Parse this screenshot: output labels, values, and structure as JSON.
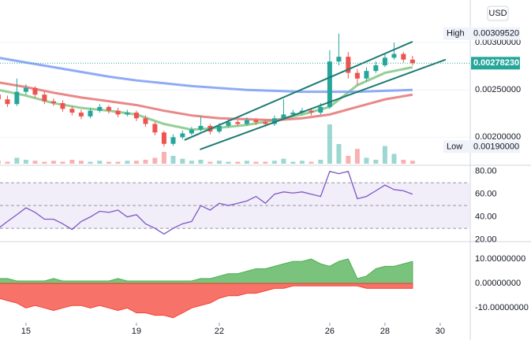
{
  "chart_data": [
    {
      "type": "candlestick",
      "currency": "USD",
      "x": [
        14,
        14.33,
        14.67,
        15,
        15.33,
        15.67,
        16,
        16.33,
        16.67,
        17,
        17.33,
        17.67,
        18,
        18.33,
        18.67,
        19,
        19.33,
        19.67,
        20,
        20.33,
        20.67,
        21,
        21.33,
        21.67,
        22,
        22.33,
        22.67,
        23,
        23.33,
        23.67,
        24,
        24.33,
        24.67,
        25,
        25.33,
        25.67,
        26,
        26.33,
        26.67,
        27,
        27.33,
        27.67,
        28,
        28.33,
        28.67,
        29
      ],
      "open": [
        0.00245,
        0.0024,
        0.00235,
        0.00248,
        0.00252,
        0.00245,
        0.00238,
        0.00236,
        0.0023,
        0.00226,
        0.00222,
        0.00228,
        0.00232,
        0.00228,
        0.00224,
        0.00226,
        0.0022,
        0.00214,
        0.00205,
        0.00193,
        0.002,
        0.00204,
        0.00208,
        0.00212,
        0.00206,
        0.00212,
        0.00216,
        0.00214,
        0.00218,
        0.00216,
        0.00214,
        0.0022,
        0.00224,
        0.00226,
        0.00228,
        0.00226,
        0.00232,
        0.0028,
        0.00285,
        0.00268,
        0.00262,
        0.0027,
        0.00276,
        0.00284,
        0.00288,
        0.00282
      ],
      "high": [
        0.0025,
        0.00244,
        0.00262,
        0.00256,
        0.00254,
        0.00248,
        0.00241,
        0.00239,
        0.00233,
        0.00229,
        0.00231,
        0.00235,
        0.00234,
        0.00231,
        0.00229,
        0.00228,
        0.00223,
        0.00216,
        0.00207,
        0.00203,
        0.00207,
        0.00211,
        0.00222,
        0.00214,
        0.00215,
        0.00219,
        0.00218,
        0.00221,
        0.0022,
        0.00218,
        0.00223,
        0.0024,
        0.00229,
        0.00231,
        0.0023,
        0.00236,
        0.00292,
        0.0030952,
        0.0029,
        0.00272,
        0.00274,
        0.0028,
        0.00288,
        0.003,
        0.0029,
        0.00286
      ],
      "low": [
        0.00236,
        0.00232,
        0.00233,
        0.00245,
        0.00242,
        0.00235,
        0.00233,
        0.00227,
        0.00223,
        0.00219,
        0.0022,
        0.00226,
        0.00225,
        0.00221,
        0.00222,
        0.00217,
        0.00211,
        0.00202,
        0.0019,
        0.00191,
        0.00198,
        0.00202,
        0.00206,
        0.00203,
        0.00204,
        0.0021,
        0.00212,
        0.00212,
        0.00213,
        0.00211,
        0.00212,
        0.00218,
        0.00222,
        0.00224,
        0.00223,
        0.00224,
        0.0023,
        0.00276,
        0.00262,
        0.00255,
        0.00259,
        0.00268,
        0.00274,
        0.00282,
        0.00279,
        0.00276
      ],
      "close": [
        0.0024,
        0.00235,
        0.00248,
        0.00252,
        0.00245,
        0.00238,
        0.00236,
        0.0023,
        0.00226,
        0.00222,
        0.00228,
        0.00232,
        0.00228,
        0.00224,
        0.00226,
        0.0022,
        0.00214,
        0.00205,
        0.00193,
        0.002,
        0.00204,
        0.00208,
        0.00212,
        0.00206,
        0.00212,
        0.00216,
        0.00214,
        0.00218,
        0.00216,
        0.00214,
        0.0022,
        0.00224,
        0.00226,
        0.00228,
        0.00226,
        0.00232,
        0.0028,
        0.00285,
        0.00268,
        0.00262,
        0.0027,
        0.00276,
        0.00284,
        0.00288,
        0.00282,
        0.0027823
      ],
      "volume": [
        3,
        2,
        6,
        4,
        3,
        2,
        3,
        2,
        4,
        3,
        2,
        3,
        2,
        2,
        3,
        3,
        4,
        6,
        12,
        8,
        5,
        3,
        4,
        2,
        3,
        2,
        2,
        3,
        2,
        2,
        3,
        5,
        2,
        3,
        2,
        4,
        40,
        20,
        8,
        15,
        6,
        4,
        18,
        10,
        4,
        3
      ],
      "up_color": "#26a69a",
      "down_color": "#ef5350",
      "ma": [
        {
          "color": "#81c784",
          "x": [
            14,
            15,
            16,
            17,
            18,
            19,
            20,
            21,
            22,
            23,
            24,
            25,
            26,
            27,
            28,
            29
          ],
          "values": [
            0.0025,
            0.00244,
            0.00236,
            0.00231,
            0.00228,
            0.00224,
            0.00214,
            0.00208,
            0.0021,
            0.00213,
            0.00218,
            0.00224,
            0.00232,
            0.00255,
            0.00268,
            0.00274
          ]
        },
        {
          "color": "#e57373",
          "x": [
            14,
            15,
            16,
            17,
            18,
            19,
            20,
            21,
            22,
            23,
            24,
            25,
            26,
            27,
            28,
            29
          ],
          "values": [
            0.00258,
            0.00253,
            0.00247,
            0.00242,
            0.00238,
            0.00234,
            0.00228,
            0.00223,
            0.0022,
            0.00219,
            0.00218,
            0.0022,
            0.00224,
            0.00232,
            0.0024,
            0.00245
          ]
        },
        {
          "color": "#7b9cf5",
          "x": [
            14,
            15,
            16,
            17,
            18,
            19,
            20,
            21,
            22,
            23,
            24,
            25,
            26,
            27,
            28,
            29
          ],
          "values": [
            0.00284,
            0.00279,
            0.00274,
            0.00269,
            0.00264,
            0.0026,
            0.00257,
            0.00254,
            0.00252,
            0.0025,
            0.00249,
            0.00248,
            0.00248,
            0.00248,
            0.00249,
            0.0025
          ]
        }
      ],
      "trendlines": [
        {
          "color": "#1e7a72",
          "x": [
            20.74,
            29.0
          ],
          "values": [
            0.00197,
            0.00301
          ]
        },
        {
          "color": "#1e7a72",
          "x": [
            21.3,
            30.2
          ],
          "values": [
            0.00187,
            0.00282
          ]
        }
      ],
      "high_marker": {
        "name": "High",
        "value": 0.0030952,
        "value_label": "0.00309520"
      },
      "low_marker": {
        "name": "Low",
        "value": 0.0019,
        "value_label": "0.00190000"
      },
      "last_label": "0.00278230",
      "xlim": [
        14.06,
        31.06
      ],
      "ylim": [
        0.00172,
        0.00345
      ],
      "yticks": [
        {
          "value": 0.003,
          "label": "0.00300000"
        },
        {
          "value": 0.0025,
          "label": "0.00250000"
        },
        {
          "value": 0.002,
          "label": "0.00200000"
        }
      ]
    },
    {
      "type": "line",
      "color": "#7e57c2",
      "x": [
        14,
        14.33,
        14.67,
        15,
        15.33,
        15.67,
        16,
        16.33,
        16.67,
        17,
        17.33,
        17.67,
        18,
        18.33,
        18.67,
        19,
        19.33,
        19.67,
        20,
        20.33,
        20.67,
        21,
        21.33,
        21.67,
        22,
        22.33,
        22.67,
        23,
        23.33,
        23.67,
        24,
        24.33,
        24.67,
        25,
        25.33,
        25.67,
        26,
        26.33,
        26.67,
        27,
        27.33,
        27.67,
        28,
        28.33,
        28.67,
        29
      ],
      "values": [
        30,
        36,
        42,
        48,
        44,
        38,
        38,
        34,
        29,
        36,
        40,
        45,
        44,
        46,
        40,
        42,
        34,
        30,
        25,
        30,
        34,
        36,
        50,
        46,
        52,
        50,
        52,
        54,
        58,
        52,
        60,
        62,
        61,
        62,
        60,
        58,
        80,
        78,
        80,
        56,
        58,
        63,
        68,
        64,
        63,
        60
      ],
      "levels": [
        30,
        50,
        70
      ],
      "xlim": [
        14.06,
        31.06
      ],
      "ylim": [
        19,
        84
      ],
      "yticks": [
        {
          "value": 80,
          "label": "80.00"
        },
        {
          "value": 60,
          "label": "60.00"
        },
        {
          "value": 40,
          "label": "40.00"
        },
        {
          "value": 20,
          "label": "20.00"
        }
      ]
    },
    {
      "type": "area",
      "x": [
        14,
        14.33,
        14.67,
        15,
        15.33,
        15.67,
        16,
        16.33,
        16.67,
        17,
        17.33,
        17.67,
        18,
        18.33,
        18.67,
        19,
        19.33,
        19.67,
        20,
        20.33,
        20.67,
        21,
        21.33,
        21.67,
        22,
        22.33,
        22.67,
        23,
        23.33,
        23.67,
        24,
        24.33,
        24.67,
        25,
        25.33,
        25.67,
        26,
        26.33,
        26.67,
        27,
        27.33,
        27.67,
        28,
        28.33,
        28.67,
        29
      ],
      "series": [
        {
          "color": "#4caf50",
          "values": [
            2,
            2,
            1,
            1,
            1,
            1,
            2,
            1,
            1,
            1,
            1,
            1,
            1,
            2,
            1,
            1,
            1,
            1,
            1,
            1,
            1,
            1,
            2,
            2,
            3,
            4,
            4,
            5,
            6,
            6,
            7,
            8,
            9,
            9,
            10,
            8,
            7,
            9,
            10,
            2,
            3,
            6,
            7,
            7,
            8,
            9
          ]
        },
        {
          "color": "#f44336",
          "values": [
            -6,
            -7,
            -8,
            -10,
            -9,
            -10,
            -11,
            -10,
            -9,
            -9,
            -10,
            -9,
            -10,
            -11,
            -10,
            -12,
            -12,
            -13,
            -13,
            -14,
            -12,
            -10,
            -9,
            -8,
            -6,
            -5,
            -5,
            -4,
            -4,
            -3,
            -2,
            -2,
            -1,
            -1,
            -1,
            -1,
            -1,
            -1,
            -1,
            -1,
            -2,
            -2,
            -2,
            -2,
            -2,
            -2
          ]
        }
      ],
      "xlim": [
        14.06,
        31.06
      ],
      "ylim": [
        -16,
        16.1
      ],
      "yticks": [
        {
          "value": 10,
          "label": "10.00000000"
        },
        {
          "value": 0,
          "label": "0.00000000"
        },
        {
          "value": -10,
          "label": "-10.00000000"
        }
      ],
      "xticks": [
        15,
        19,
        22,
        26,
        28,
        30
      ]
    }
  ]
}
